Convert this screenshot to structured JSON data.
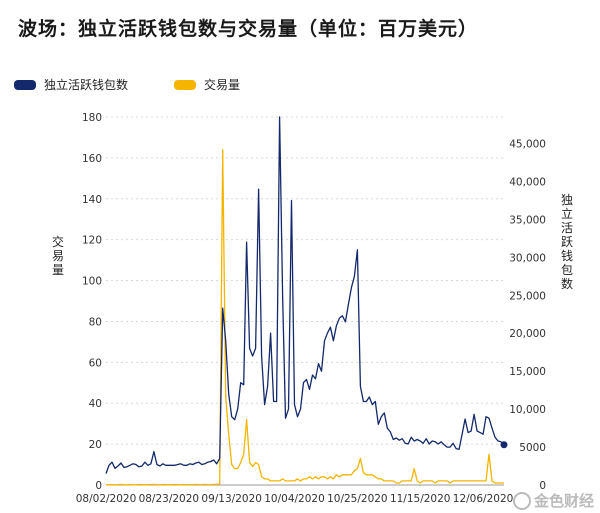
{
  "title": "波场：独立活跃钱包数与交易量（单位：百万美元）",
  "legend": [
    {
      "label": "独立活跃钱包数",
      "color": "#13296b"
    },
    {
      "label": "交易量",
      "color": "#f5b400"
    }
  ],
  "watermark": "金色财经",
  "chart_data": {
    "type": "line",
    "x_tick_labels": [
      "08/02/2020",
      "08/23/2020",
      "09/13/2020",
      "10/04/2020",
      "10/25/2020",
      "11/15/2020",
      "12/06/2020"
    ],
    "left_axis": {
      "label": "交易量",
      "ticks": [
        0,
        20,
        40,
        60,
        80,
        100,
        120,
        140,
        160,
        180
      ],
      "ylim": [
        0,
        180
      ]
    },
    "right_axis": {
      "label": "独立活跃钱包数",
      "ticks": [
        "0",
        "5000",
        "10,000",
        "15,000",
        "20,000",
        "25,000",
        "30,000",
        "35,000",
        "40,000",
        "45,000"
      ],
      "ylim": [
        0,
        48500
      ]
    },
    "x_start": "2020-08-02",
    "series": [
      {
        "name": "独立活跃钱包数",
        "axis": "right",
        "color": "#13296b",
        "values": [
          1500,
          2600,
          3000,
          2200,
          2500,
          2900,
          2300,
          2400,
          2600,
          2800,
          2700,
          2400,
          2500,
          3000,
          2600,
          2800,
          4400,
          2700,
          2500,
          2800,
          2600,
          2600,
          2600,
          2600,
          2700,
          2800,
          2600,
          2600,
          2800,
          2700,
          2900,
          3000,
          2700,
          2800,
          3000,
          3100,
          3300,
          2800,
          3500,
          23300,
          19000,
          12000,
          9000,
          8600,
          10000,
          13500,
          13200,
          32000,
          18000,
          17000,
          18000,
          39000,
          17000,
          10600,
          13000,
          20000,
          11000,
          11000,
          48500,
          25000,
          8800,
          10000,
          37500,
          10600,
          9000,
          10000,
          13500,
          13900,
          12600,
          14500,
          14000,
          16000,
          15000,
          19000,
          20000,
          20800,
          19000,
          21000,
          22000,
          22300,
          21500,
          23800,
          26000,
          27500,
          31000,
          13000,
          11000,
          11000,
          11600,
          10600,
          11000,
          8000,
          9000,
          9500,
          7500,
          7000,
          6000,
          6200,
          5900,
          6100,
          5500,
          5400,
          6300,
          5800,
          6000,
          5800,
          5500,
          6100,
          5400,
          5800,
          5700,
          5400,
          5700,
          5300,
          5000,
          5000,
          5500,
          4800,
          4700,
          6700,
          8700,
          6900,
          7100,
          9300,
          7100,
          6900,
          6700,
          9000,
          8800,
          7500,
          6300,
          5800,
          5700,
          5300
        ]
      },
      {
        "name": "交易量",
        "axis": "left",
        "color": "#f5b400",
        "values": [
          0.2,
          0.1,
          0.2,
          0.1,
          0.2,
          0.3,
          0.2,
          0.1,
          0.2,
          0.1,
          0.1,
          0.2,
          0.2,
          0.1,
          0.2,
          0.2,
          0.3,
          0.2,
          0.1,
          0.2,
          0.2,
          0.1,
          0.2,
          0.2,
          0.2,
          0.1,
          0.2,
          0.2,
          0.2,
          0.2,
          0.3,
          0.2,
          0.2,
          0.3,
          0.2,
          0.2,
          0.3,
          0.3,
          0.4,
          164,
          43,
          25,
          10,
          8,
          8,
          11,
          15,
          32,
          11,
          9,
          11,
          10,
          4,
          3,
          3,
          2,
          2,
          2,
          2,
          3,
          2,
          2,
          2,
          2,
          3,
          2,
          3,
          3,
          4,
          3,
          4,
          3,
          4,
          4,
          3,
          4,
          3,
          5,
          4,
          5,
          5,
          5,
          5,
          7,
          8,
          13,
          6,
          5,
          5,
          5,
          4,
          3,
          3,
          2,
          2,
          2,
          2,
          1,
          1,
          2,
          2,
          2,
          2,
          8,
          2,
          1,
          2,
          2,
          2,
          2,
          1,
          2,
          2,
          2,
          2,
          1,
          2,
          2,
          2,
          2,
          2,
          2,
          2,
          2,
          2,
          2,
          2,
          2,
          15,
          2,
          1,
          1,
          1,
          1
        ]
      }
    ]
  }
}
